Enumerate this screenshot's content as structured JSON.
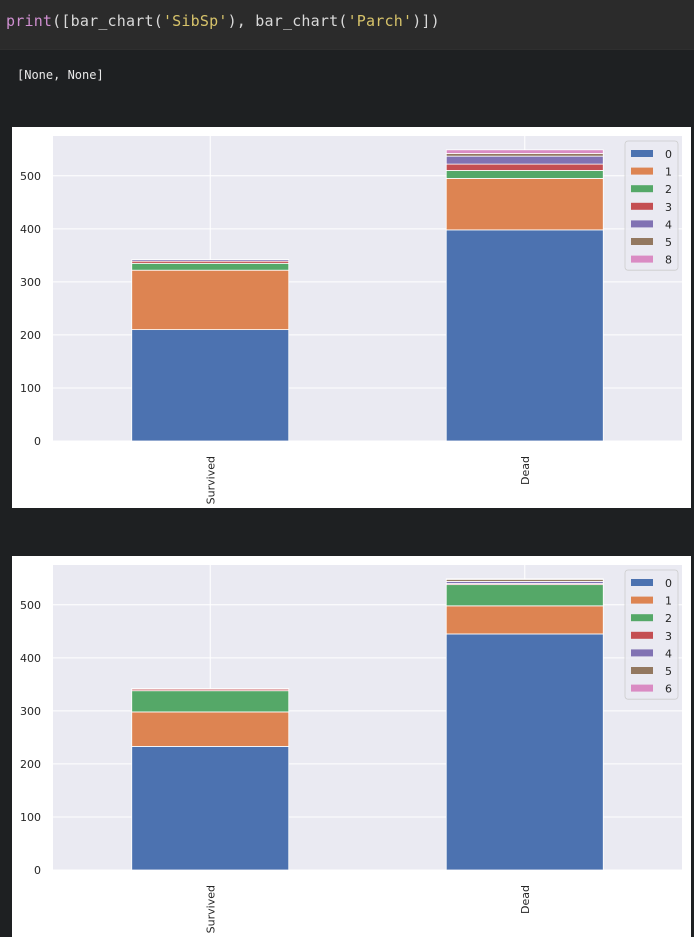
{
  "code": {
    "fn_print": "print",
    "open": "([",
    "fn_bar1": "bar_chart",
    "paren1": "(",
    "arg1": "'SibSp'",
    "sep": "), ",
    "fn_bar2": "bar_chart",
    "paren2": "(",
    "arg2": "'Parch'",
    "close": ")])"
  },
  "stdout": "[None, None]",
  "colors": {
    "0": "#4c72b0",
    "1": "#dd8452",
    "2": "#55a868",
    "3": "#c44e52",
    "4": "#8172b3",
    "5": "#937860",
    "6": "#da8bc3",
    "8": "#da8bc3",
    "axes_bg": "#eaeaf2",
    "grid": "#ffffff"
  },
  "chart_data": [
    {
      "type": "bar",
      "stacked": true,
      "categories": [
        "Survived",
        "Dead"
      ],
      "ylim": [
        0,
        575
      ],
      "yticks": [
        0,
        100,
        200,
        300,
        400,
        500
      ],
      "grid": true,
      "legend_placement": "top-right",
      "series": [
        {
          "name": "0",
          "values": [
            210,
            398
          ]
        },
        {
          "name": "1",
          "values": [
            112,
            97
          ]
        },
        {
          "name": "2",
          "values": [
            13,
            15
          ]
        },
        {
          "name": "3",
          "values": [
            4,
            12
          ]
        },
        {
          "name": "4",
          "values": [
            3,
            15
          ]
        },
        {
          "name": "5",
          "values": [
            0,
            5
          ]
        },
        {
          "name": "8",
          "values": [
            0,
            7
          ]
        }
      ]
    },
    {
      "type": "bar",
      "stacked": true,
      "categories": [
        "Survived",
        "Dead"
      ],
      "ylim": [
        0,
        575
      ],
      "yticks": [
        0,
        100,
        200,
        300,
        400,
        500
      ],
      "grid": true,
      "legend_placement": "top-right",
      "series": [
        {
          "name": "0",
          "values": [
            233,
            445
          ]
        },
        {
          "name": "1",
          "values": [
            65,
            53
          ]
        },
        {
          "name": "2",
          "values": [
            40,
            40
          ]
        },
        {
          "name": "3",
          "values": [
            3,
            2
          ]
        },
        {
          "name": "4",
          "values": [
            0,
            4
          ]
        },
        {
          "name": "5",
          "values": [
            1,
            4
          ]
        },
        {
          "name": "6",
          "values": [
            0,
            1
          ]
        }
      ]
    }
  ]
}
